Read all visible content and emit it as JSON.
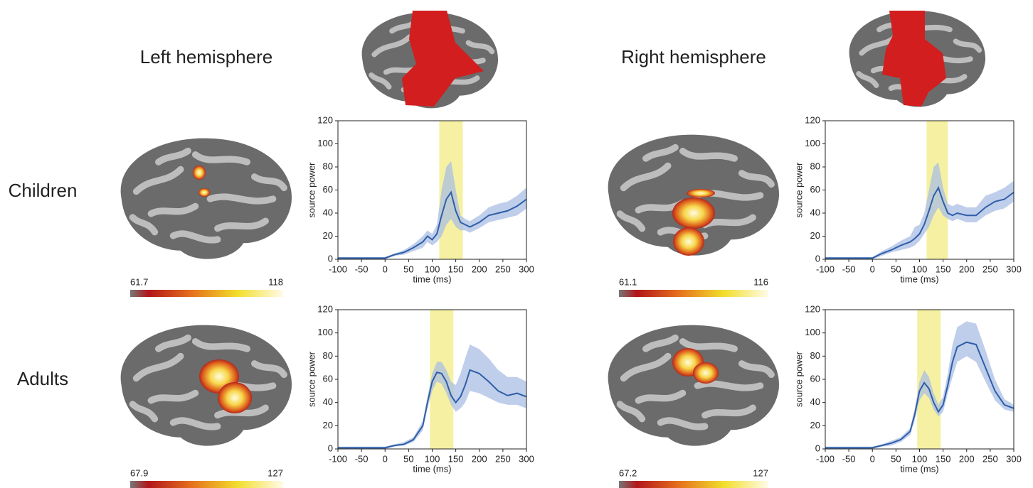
{
  "headers": {
    "left": "Left hemisphere",
    "right": "Right hemisphere"
  },
  "rows": [
    "Children",
    "Adults"
  ],
  "colorbars": [
    {
      "min": 61.7,
      "max": 118
    },
    {
      "min": 61.1,
      "max": 116
    },
    {
      "min": 67.9,
      "max": 127
    },
    {
      "min": 67.2,
      "max": 127
    }
  ],
  "chart_data": [
    {
      "type": "line",
      "x_label": "time (ms)",
      "y_label": "source power",
      "x": [
        -100,
        -75,
        -50,
        -25,
        0,
        20,
        40,
        60,
        80,
        90,
        100,
        110,
        120,
        130,
        140,
        150,
        160,
        170,
        180,
        200,
        220,
        240,
        260,
        280,
        300
      ],
      "xlim": [
        -100,
        300
      ],
      "xticks": [
        -100,
        -50,
        0,
        50,
        100,
        150,
        200,
        250,
        300
      ],
      "ylim": [
        0,
        120
      ],
      "yticks": [
        0,
        20,
        40,
        60,
        80,
        100,
        120
      ],
      "highlight": [
        115,
        165
      ],
      "highlight_color": "#f6f1a2",
      "series": [
        {
          "color": "#2f5ea8",
          "band_color": "#a9bde3",
          "values": [
            1,
            1,
            1,
            1,
            1,
            4,
            6,
            10,
            15,
            20,
            17,
            22,
            38,
            52,
            58,
            42,
            32,
            30,
            28,
            32,
            38,
            40,
            42,
            46,
            52
          ],
          "upper": [
            2,
            2,
            2,
            2,
            2,
            5,
            8,
            13,
            20,
            25,
            22,
            30,
            60,
            80,
            85,
            60,
            38,
            35,
            33,
            38,
            45,
            48,
            50,
            55,
            62
          ],
          "lower": [
            0,
            0,
            0,
            0,
            0,
            3,
            4,
            7,
            10,
            15,
            12,
            15,
            20,
            30,
            35,
            28,
            25,
            25,
            23,
            27,
            32,
            34,
            36,
            38,
            44
          ]
        }
      ]
    },
    {
      "type": "line",
      "x_label": "time (ms)",
      "y_label": "source power",
      "x": [
        -100,
        -75,
        -50,
        -25,
        0,
        20,
        40,
        60,
        80,
        90,
        100,
        110,
        120,
        130,
        140,
        150,
        160,
        170,
        180,
        200,
        220,
        240,
        260,
        280,
        300
      ],
      "xlim": [
        -100,
        300
      ],
      "xticks": [
        -100,
        -50,
        0,
        50,
        100,
        150,
        200,
        250,
        300
      ],
      "ylim": [
        0,
        120
      ],
      "yticks": [
        0,
        20,
        40,
        60,
        80,
        100,
        120
      ],
      "highlight": [
        115,
        160
      ],
      "highlight_color": "#f6f1a2",
      "series": [
        {
          "color": "#2f5ea8",
          "band_color": "#a9bde3",
          "values": [
            1,
            1,
            1,
            1,
            1,
            5,
            8,
            12,
            15,
            18,
            22,
            30,
            42,
            55,
            62,
            50,
            40,
            38,
            40,
            38,
            38,
            45,
            50,
            52,
            58
          ],
          "upper": [
            2,
            2,
            2,
            2,
            2,
            7,
            11,
            16,
            20,
            28,
            30,
            40,
            60,
            80,
            84,
            62,
            48,
            46,
            48,
            45,
            45,
            55,
            58,
            62,
            68
          ],
          "lower": [
            0,
            0,
            0,
            0,
            0,
            3,
            6,
            8,
            10,
            12,
            16,
            22,
            28,
            38,
            45,
            38,
            35,
            33,
            35,
            32,
            32,
            38,
            42,
            44,
            50
          ]
        }
      ]
    },
    {
      "type": "line",
      "x_label": "time (ms)",
      "y_label": "source power",
      "x": [
        -100,
        -75,
        -50,
        -25,
        0,
        20,
        40,
        60,
        80,
        90,
        100,
        110,
        120,
        130,
        140,
        150,
        160,
        170,
        180,
        200,
        220,
        240,
        260,
        280,
        300
      ],
      "xlim": [
        -100,
        300
      ],
      "xticks": [
        -100,
        -50,
        0,
        50,
        100,
        150,
        200,
        250,
        300
      ],
      "ylim": [
        0,
        120
      ],
      "yticks": [
        0,
        20,
        40,
        60,
        80,
        100,
        120
      ],
      "highlight": [
        95,
        145
      ],
      "highlight_color": "#f6f1a2",
      "series": [
        {
          "color": "#2f5ea8",
          "band_color": "#a9bde3",
          "values": [
            1,
            1,
            1,
            1,
            1,
            3,
            4,
            8,
            20,
            40,
            58,
            66,
            65,
            58,
            46,
            40,
            45,
            55,
            68,
            65,
            58,
            50,
            46,
            48,
            45
          ],
          "upper": [
            2,
            2,
            2,
            2,
            2,
            4,
            6,
            10,
            24,
            45,
            65,
            75,
            75,
            68,
            58,
            55,
            65,
            78,
            90,
            86,
            78,
            68,
            62,
            62,
            58
          ],
          "lower": [
            0,
            0,
            0,
            0,
            0,
            2,
            3,
            6,
            16,
            35,
            50,
            58,
            56,
            48,
            38,
            32,
            35,
            40,
            50,
            48,
            44,
            40,
            38,
            38,
            35
          ]
        }
      ]
    },
    {
      "type": "line",
      "x_label": "time (ms)",
      "y_label": "source power",
      "x": [
        -100,
        -75,
        -50,
        -25,
        0,
        20,
        40,
        60,
        80,
        90,
        100,
        110,
        120,
        130,
        140,
        150,
        160,
        170,
        180,
        200,
        220,
        240,
        260,
        280,
        300
      ],
      "xlim": [
        -100,
        300
      ],
      "xticks": [
        -100,
        -50,
        0,
        50,
        100,
        150,
        200,
        250,
        300
      ],
      "ylim": [
        0,
        120
      ],
      "yticks": [
        0,
        20,
        40,
        60,
        80,
        100,
        120
      ],
      "highlight": [
        95,
        145
      ],
      "highlight_color": "#f6f1a2",
      "series": [
        {
          "color": "#2f5ea8",
          "band_color": "#a9bde3",
          "values": [
            1,
            1,
            1,
            1,
            1,
            3,
            5,
            8,
            15,
            30,
            50,
            57,
            52,
            40,
            32,
            38,
            55,
            75,
            88,
            92,
            90,
            70,
            50,
            38,
            35
          ],
          "upper": [
            2,
            2,
            2,
            2,
            2,
            4,
            7,
            10,
            18,
            35,
            58,
            68,
            62,
            48,
            38,
            45,
            65,
            90,
            105,
            110,
            108,
            85,
            60,
            43,
            38
          ],
          "lower": [
            0,
            0,
            0,
            0,
            0,
            2,
            3,
            6,
            12,
            25,
            42,
            48,
            44,
            34,
            28,
            32,
            48,
            62,
            75,
            80,
            75,
            58,
            42,
            34,
            32
          ]
        }
      ]
    }
  ]
}
